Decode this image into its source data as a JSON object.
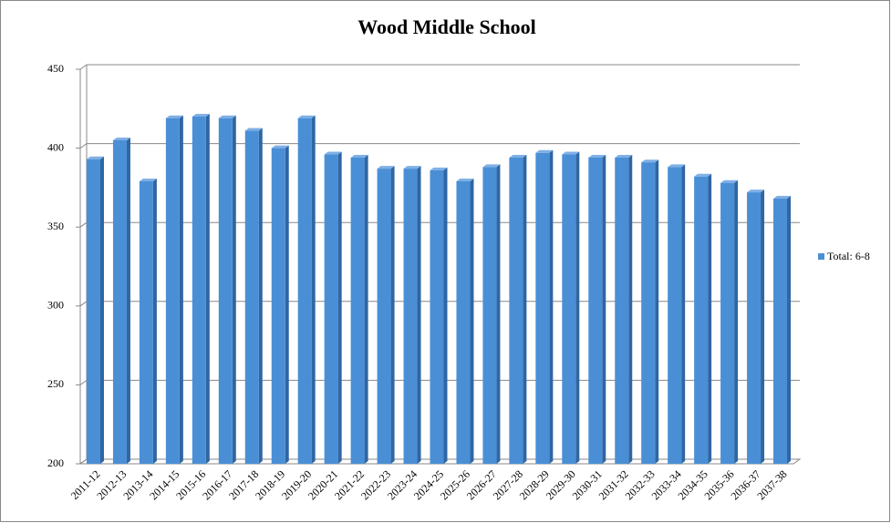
{
  "chart_data": {
    "type": "bar",
    "title": "Wood Middle School",
    "categories": [
      "2011-12",
      "2012-13",
      "2013-14",
      "2014-15",
      "2015-16",
      "2016-17",
      "2017-18",
      "2018-19",
      "2019-20",
      "2020-21",
      "2021-22",
      "2022-23",
      "2023-24",
      "2024-25",
      "2025-26",
      "2026-27",
      "2027-28",
      "2028-29",
      "2029-30",
      "2030-31",
      "2031-32",
      "2032-33",
      "2033-34",
      "2034-35",
      "2035-36",
      "2036-37",
      "2037-38"
    ],
    "series": [
      {
        "name": "Total: 6-8",
        "color": "#4a8fd6",
        "values": [
          393,
          405,
          379,
          419,
          420,
          419,
          411,
          400,
          419,
          396,
          394,
          387,
          387,
          386,
          379,
          388,
          394,
          397,
          396,
          394,
          394,
          391,
          388,
          382,
          378,
          372,
          368
        ]
      }
    ],
    "ylim": [
      200,
      450
    ],
    "yticks": [
      200,
      250,
      300,
      350,
      400,
      450
    ],
    "grid": true,
    "legend": "right"
  }
}
